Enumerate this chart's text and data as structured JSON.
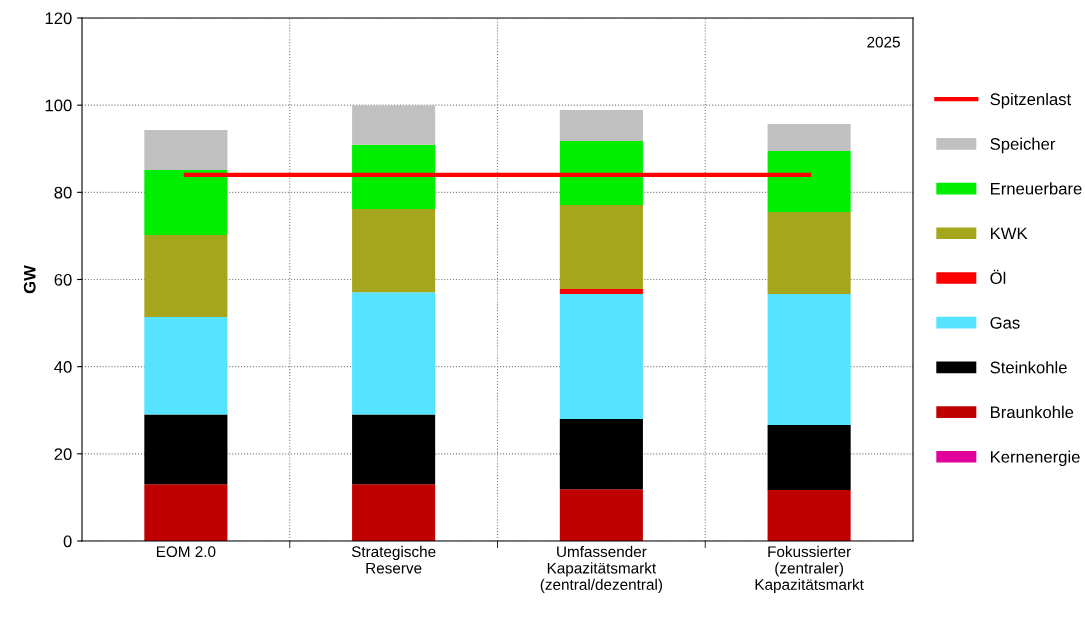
{
  "chart_data": {
    "type": "bar",
    "stacked": true,
    "ylabel": "GW",
    "categories": [
      "EOM 2.0",
      "Strategische\nReserve",
      "Umfassender\nKapazitätsmarkt\n(zentral/dezentral)",
      "Fokussierter\n(zentraler)\nKapazitätsmarkt"
    ],
    "series": [
      {
        "name": "Kernenergie",
        "color": "#e0009c",
        "values": [
          0,
          0,
          0,
          0
        ]
      },
      {
        "name": "Braunkohle",
        "color": "#c00000",
        "values": [
          13,
          13,
          11.9,
          11.7
        ]
      },
      {
        "name": "Steinkohle",
        "color": "#000000",
        "values": [
          16,
          16,
          16.1,
          14.9
        ]
      },
      {
        "name": "Gas",
        "color": "#55e3ff",
        "values": [
          22.4,
          28.1,
          28.7,
          30.1
        ]
      },
      {
        "name": "Öl",
        "color": "#ff0000",
        "values": [
          0,
          0,
          1.1,
          0
        ]
      },
      {
        "name": "KWK",
        "color": "#a6a61c",
        "values": [
          18.8,
          19.1,
          19.3,
          18.8
        ]
      },
      {
        "name": "Erneuerbare",
        "color": "#00ee00",
        "values": [
          14.9,
          14.7,
          14.7,
          14
        ]
      },
      {
        "name": "Speicher",
        "color": "#c0c0c0",
        "values": [
          9.2,
          9.1,
          7.1,
          6.2
        ]
      },
      {
        "name": "Spitzenlast",
        "type": "line",
        "color": "#ff0000",
        "values": [
          84,
          84,
          84,
          84
        ]
      }
    ],
    "ylim": [
      0,
      120
    ],
    "yticks": [
      0,
      20,
      40,
      60,
      80,
      100,
      120
    ],
    "grid": true,
    "legend": "right",
    "annotations": [
      "2025"
    ]
  }
}
